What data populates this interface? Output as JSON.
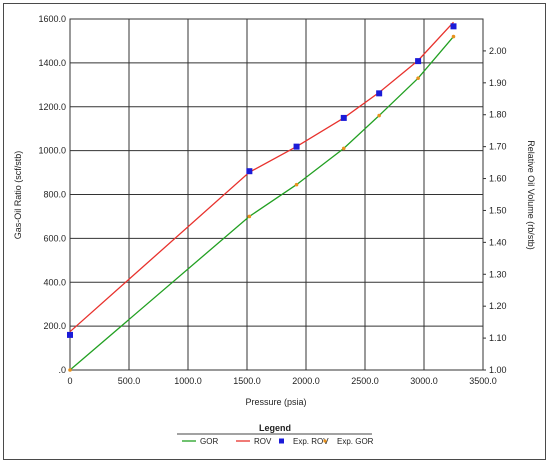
{
  "chart_data": {
    "type": "line",
    "xlabel": "Pressure (psia)",
    "ylabel_left": "Gas-Oil Ratio (scf/stb)",
    "ylabel_right": "Relative Oil Volume (rb/stb)",
    "xlim": [
      0,
      3500
    ],
    "ylim_left": [
      0,
      1600
    ],
    "ylim_right": [
      1.0,
      2.1
    ],
    "grid": true,
    "legend_placement": "bottom-center",
    "x_ticks": [
      "0",
      "500.0",
      "1000.0",
      "1500.0",
      "2000.0",
      "2500.0",
      "3000.0",
      "3500.0"
    ],
    "y_left_ticks": [
      ".0",
      "200.0",
      "400.0",
      "600.0",
      "800.0",
      "1000.0",
      "1200.0",
      "1400.0",
      "1600.0"
    ],
    "y_right_ticks": [
      "1.00",
      "1.10",
      "1.20",
      "1.30",
      "1.40",
      "1.50",
      "1.60",
      "1.70",
      "1.80",
      "1.90",
      "2.00"
    ],
    "legend_title": "Legend",
    "series": [
      {
        "name": "GOR",
        "axis": "left",
        "style": "line",
        "color": "#22a022",
        "x": [
          0,
          1520,
          1920,
          2320,
          2620,
          2950,
          3250
        ],
        "y": [
          0,
          700,
          845,
          1010,
          1160,
          1330,
          1520
        ]
      },
      {
        "name": "ROV",
        "axis": "right",
        "style": "line",
        "color": "#e8322d",
        "x": [
          0,
          1520,
          1920,
          2320,
          2620,
          2950,
          3250
        ],
        "y": [
          1.12,
          1.62,
          1.7,
          1.79,
          1.87,
          1.97,
          2.09
        ]
      },
      {
        "name": "Exp. ROV",
        "axis": "right",
        "style": "marker-square",
        "color": "#1b1bd8",
        "x": [
          0,
          1520,
          1920,
          2320,
          2620,
          2950,
          3250
        ],
        "y": [
          1.11,
          1.623,
          1.7,
          1.79,
          1.867,
          1.968,
          2.077
        ]
      },
      {
        "name": "Exp. GOR",
        "axis": "left",
        "style": "marker-dot",
        "color": "#e8921d",
        "x": [
          0,
          1520,
          1920,
          2320,
          2620,
          2950,
          3250
        ],
        "y": [
          0,
          700,
          845,
          1010,
          1160,
          1330,
          1520
        ]
      }
    ]
  }
}
